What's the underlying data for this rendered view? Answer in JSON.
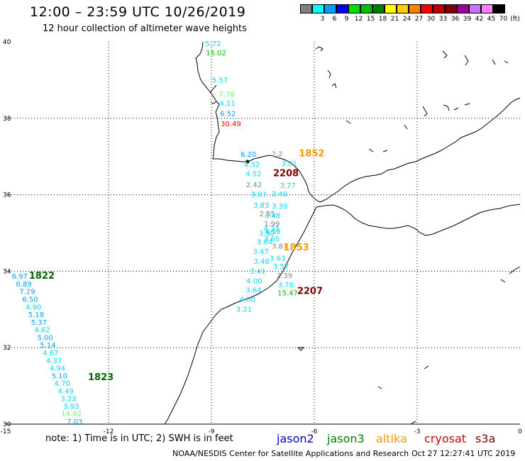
{
  "title": "12:00 – 23:59 UTC 10/26/2019",
  "subtitle": "12 hour collection of altimeter wave heights",
  "colorbar": {
    "cells": [
      {
        "label": "",
        "color": "#808080"
      },
      {
        "label": "3",
        "color": "#00ffff"
      },
      {
        "label": "6",
        "color": "#00a0ff"
      },
      {
        "label": "9",
        "color": "#0000ff"
      },
      {
        "label": "12",
        "color": "#00e000"
      },
      {
        "label": "15",
        "color": "#00c000"
      },
      {
        "label": "18",
        "color": "#008000"
      },
      {
        "label": "21",
        "color": "#ffff00"
      },
      {
        "label": "24",
        "color": "#ffd000"
      },
      {
        "label": "27",
        "color": "#ff8000"
      },
      {
        "label": "30",
        "color": "#ff0000"
      },
      {
        "label": "33",
        "color": "#c00000"
      },
      {
        "label": "36",
        "color": "#800000"
      },
      {
        "label": "39",
        "color": "#a000a0"
      },
      {
        "label": "42",
        "color": "#d070ff"
      },
      {
        "label": "45",
        "color": "#ff80ff"
      },
      {
        "label": "70",
        "color": "#000000"
      }
    ],
    "unit": "(ft)"
  },
  "map": {
    "lon_range": [
      -15,
      0
    ],
    "lat_range": [
      30,
      40
    ],
    "x_ticks": [
      {
        "value": -15,
        "label": "-15"
      },
      {
        "value": -12,
        "label": "-12"
      },
      {
        "value": -9,
        "label": "-9"
      },
      {
        "value": -6,
        "label": "-6"
      },
      {
        "value": -3,
        "label": "-3"
      },
      {
        "value": 0,
        "label": "0"
      }
    ],
    "y_ticks": [
      {
        "value": 40,
        "label": "40"
      },
      {
        "value": 38,
        "label": "38"
      },
      {
        "value": 36,
        "label": "36"
      },
      {
        "value": 34,
        "label": "34"
      },
      {
        "value": 32,
        "label": "32"
      },
      {
        "value": 30,
        "label": "30"
      }
    ],
    "grid": true,
    "coast_color": "#000000"
  },
  "chart_data": {
    "type": "scatter",
    "title": "12:00 – 23:59 UTC 10/26/2019",
    "subtitle": "12 hour collection of altimeter wave heights",
    "xlabel": "",
    "ylabel": "",
    "xlim": [
      -15,
      0
    ],
    "ylim": [
      30,
      40
    ],
    "grid": true,
    "points": [
      {
        "lon": -9.18,
        "lat": 39.89,
        "value": "5.72",
        "color": "#00d8ff"
      },
      {
        "lon": -9.16,
        "lat": 39.65,
        "value": "15.02",
        "color": "#00c000"
      },
      {
        "lon": -8.98,
        "lat": 38.93,
        "value": "5.57",
        "color": "#00d8ff"
      },
      {
        "lon": -8.78,
        "lat": 38.56,
        "value": "7.78",
        "color": "#60ff60"
      },
      {
        "lon": -8.76,
        "lat": 38.33,
        "value": "4.11",
        "color": "#00d8ff"
      },
      {
        "lon": -8.75,
        "lat": 38.06,
        "value": "6.52",
        "color": "#00a0ff"
      },
      {
        "lon": -8.73,
        "lat": 37.79,
        "value": "30.49",
        "color": "#ff0000"
      },
      {
        "lon": -8.15,
        "lat": 36.99,
        "value": "6.20",
        "color": "#00a0ff"
      },
      {
        "lon": -7.25,
        "lat": 37.0,
        "value": "2.2",
        "color": "#808080"
      },
      {
        "lon": -8.05,
        "lat": 36.73,
        "value": "4.32",
        "color": "#00d8ff"
      },
      {
        "lon": -6.96,
        "lat": 36.75,
        "value": "3.01",
        "color": "#00d8ff"
      },
      {
        "lon": -8.0,
        "lat": 36.48,
        "value": "4.52",
        "color": "#00d8ff"
      },
      {
        "lon": -7.99,
        "lat": 36.2,
        "value": "2.42",
        "color": "#808080"
      },
      {
        "lon": -7.0,
        "lat": 36.18,
        "value": "3.77",
        "color": "#00d8ff"
      },
      {
        "lon": -7.85,
        "lat": 35.95,
        "value": "3.97",
        "color": "#00d8ff"
      },
      {
        "lon": -7.25,
        "lat": 35.96,
        "value": "3.40",
        "color": "#00d8ff"
      },
      {
        "lon": -7.78,
        "lat": 35.66,
        "value": "3.83",
        "color": "#00d8ff"
      },
      {
        "lon": -7.24,
        "lat": 35.64,
        "value": "3.39",
        "color": "#00d8ff"
      },
      {
        "lon": -7.6,
        "lat": 35.44,
        "value": "2.55",
        "color": "#808080"
      },
      {
        "lon": -7.45,
        "lat": 35.39,
        "value": "3.48",
        "color": "#00d8ff"
      },
      {
        "lon": -7.47,
        "lat": 35.18,
        "value": "1.99",
        "color": "#808080"
      },
      {
        "lon": -7.48,
        "lat": 35.05,
        "value": "4.23",
        "color": "#00d8ff"
      },
      {
        "lon": -7.44,
        "lat": 34.97,
        "value": "4.59",
        "color": "#00d8ff"
      },
      {
        "lon": -7.62,
        "lat": 34.93,
        "value": "3.90",
        "color": "#00d8ff"
      },
      {
        "lon": -7.47,
        "lat": 34.78,
        "value": "3.65",
        "color": "#00d8ff"
      },
      {
        "lon": -7.68,
        "lat": 34.7,
        "value": "3.84",
        "color": "#00d8ff"
      },
      {
        "lon": -7.24,
        "lat": 34.59,
        "value": "3.87",
        "color": "#808080"
      },
      {
        "lon": -7.79,
        "lat": 34.45,
        "value": "3.47",
        "color": "#00d8ff"
      },
      {
        "lon": -7.3,
        "lat": 34.28,
        "value": "3.63",
        "color": "#00d8ff"
      },
      {
        "lon": -7.77,
        "lat": 34.19,
        "value": "3.48",
        "color": "#00d8ff"
      },
      {
        "lon": -7.2,
        "lat": 34.06,
        "value": "3.57",
        "color": "#00d8ff"
      },
      {
        "lon": -7.88,
        "lat": 33.93,
        "value": "3.41",
        "color": "#00d8ff"
      },
      {
        "lon": -7.1,
        "lat": 33.82,
        "value": "2.39",
        "color": "#808080"
      },
      {
        "lon": -7.98,
        "lat": 33.68,
        "value": "4.00",
        "color": "#00d8ff"
      },
      {
        "lon": -7.06,
        "lat": 33.58,
        "value": "3.76",
        "color": "#00d8ff"
      },
      {
        "lon": -8.0,
        "lat": 33.44,
        "value": "3.64",
        "color": "#00d8ff"
      },
      {
        "lon": -7.07,
        "lat": 33.37,
        "value": "15.47",
        "color": "#00c000"
      },
      {
        "lon": -8.18,
        "lat": 33.2,
        "value": "4.00",
        "color": "#00d8ff"
      },
      {
        "lon": -8.28,
        "lat": 32.94,
        "value": "3.21",
        "color": "#00d8ff"
      },
      {
        "lon": -14.82,
        "lat": 33.8,
        "value": "6.97",
        "color": "#00a0ff"
      },
      {
        "lon": -14.7,
        "lat": 33.6,
        "value": "6.89",
        "color": "#00a0ff"
      },
      {
        "lon": -14.6,
        "lat": 33.4,
        "value": "7.29",
        "color": "#00a0ff"
      },
      {
        "lon": -14.52,
        "lat": 33.2,
        "value": "6.50",
        "color": "#00a0ff"
      },
      {
        "lon": -14.42,
        "lat": 33.0,
        "value": "4.90",
        "color": "#00d8ff"
      },
      {
        "lon": -14.34,
        "lat": 32.8,
        "value": "5.18",
        "color": "#00a0ff"
      },
      {
        "lon": -14.26,
        "lat": 32.6,
        "value": "5.37",
        "color": "#00a0ff"
      },
      {
        "lon": -14.16,
        "lat": 32.4,
        "value": "4.62",
        "color": "#00d8ff"
      },
      {
        "lon": -14.08,
        "lat": 32.2,
        "value": "5.00",
        "color": "#00a0ff"
      },
      {
        "lon": -14.0,
        "lat": 32.0,
        "value": "5.14",
        "color": "#00a0ff"
      },
      {
        "lon": -13.92,
        "lat": 31.8,
        "value": "4.67",
        "color": "#00d8ff"
      },
      {
        "lon": -13.82,
        "lat": 31.6,
        "value": "4.37",
        "color": "#00d8ff"
      },
      {
        "lon": -13.72,
        "lat": 31.4,
        "value": "4.94",
        "color": "#00d8ff"
      },
      {
        "lon": -13.66,
        "lat": 31.2,
        "value": "5.10",
        "color": "#00a0ff"
      },
      {
        "lon": -13.58,
        "lat": 31.0,
        "value": "4.70",
        "color": "#00d8ff"
      },
      {
        "lon": -13.48,
        "lat": 30.8,
        "value": "4.49",
        "color": "#00d8ff"
      },
      {
        "lon": -13.4,
        "lat": 30.6,
        "value": "3.23",
        "color": "#00d8ff"
      },
      {
        "lon": -13.32,
        "lat": 30.4,
        "value": "3.93",
        "color": "#00d8ff"
      },
      {
        "lon": -13.38,
        "lat": 30.21,
        "value": "14.92",
        "color": "#60ff60"
      },
      {
        "lon": -13.22,
        "lat": 30.0,
        "value": "7.03",
        "color": "#00a0ff"
      }
    ],
    "annotations": [
      {
        "lon": -6.45,
        "lat": 37.0,
        "text": "1852",
        "color": "#ff9900"
      },
      {
        "lon": -7.2,
        "lat": 36.48,
        "text": "2208",
        "color": "#800000"
      },
      {
        "lon": -6.9,
        "lat": 34.55,
        "text": "1853",
        "color": "#ff9900"
      },
      {
        "lon": -6.5,
        "lat": 33.4,
        "text": "2207",
        "color": "#800000"
      },
      {
        "lon": -14.32,
        "lat": 33.8,
        "text": "1822",
        "color": "#006600"
      },
      {
        "lon": -12.6,
        "lat": 31.15,
        "text": "1823",
        "color": "#006600"
      }
    ]
  },
  "note": "note: 1) Time is in UTC; 2) SWH is in feet",
  "satellites": [
    {
      "label": "jason2",
      "color": "#0000cc"
    },
    {
      "label": "jason3",
      "color": "#008000"
    },
    {
      "label": "altika",
      "color": "#ff9900"
    },
    {
      "label": "cryosat",
      "color": "#cc0000"
    },
    {
      "label": "s3a",
      "color": "#800000"
    }
  ],
  "credit": "NOAA/NESDIS Center for Satellite Applications and Research",
  "timestamp": "Oct 27 12:27:41 UTC 2019"
}
